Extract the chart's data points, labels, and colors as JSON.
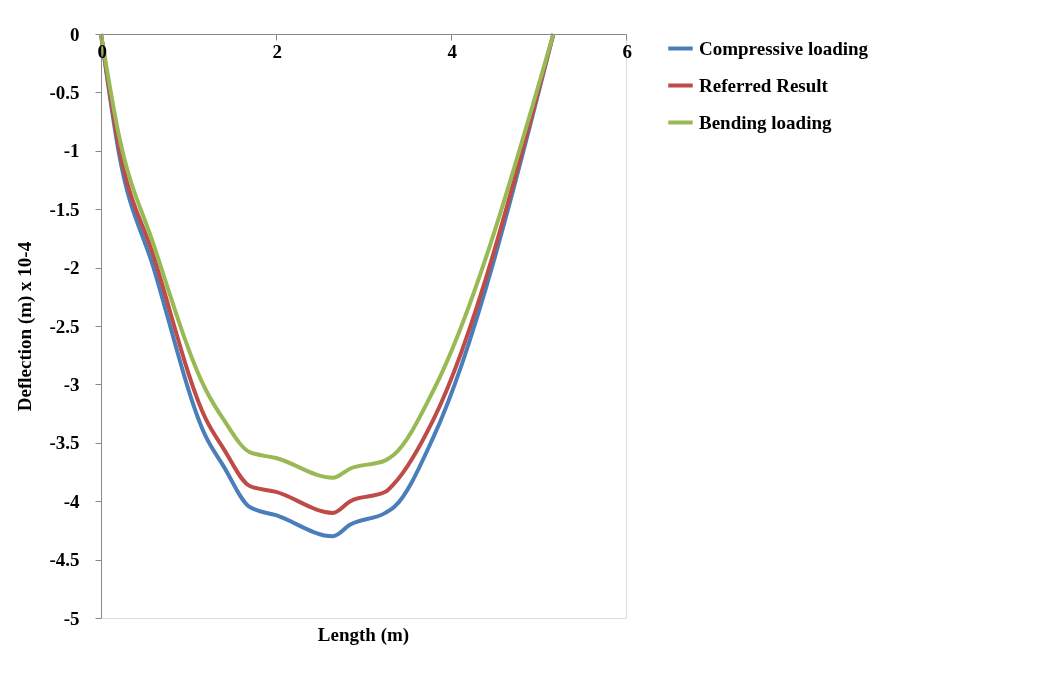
{
  "chart_data": {
    "type": "line",
    "xlabel": "Length (m)",
    "ylabel": "Deflection (m) x 10-4",
    "xlim": [
      0,
      6
    ],
    "xticks": [
      0,
      2,
      4,
      6
    ],
    "ylim": [
      -5,
      0
    ],
    "yticks": [
      0,
      -0.5,
      -1,
      -1.5,
      -2,
      -2.5,
      -3,
      -3.5,
      -4,
      -4.5,
      -5
    ],
    "grid": false,
    "legend": "right",
    "marker": "none",
    "line_style": "solid",
    "series": [
      {
        "name": "Compressive loading",
        "color": "#4a7ebb",
        "x": [
          0,
          0.2,
          0.6,
          1.2,
          1.4,
          1.7,
          2.0,
          2.65,
          2.85,
          3.25,
          3.35,
          3.8,
          5.17
        ],
        "values": [
          0,
          -1.0,
          -2.0,
          -3.45,
          -3.7,
          -4.05,
          -4.12,
          -4.3,
          -4.2,
          -4.1,
          -4.05,
          -3.45,
          0
        ]
      },
      {
        "name": "Referred Result",
        "color": "#be4b48",
        "x": [
          0,
          0.2,
          0.6,
          1.2,
          1.4,
          1.7,
          2.0,
          2.65,
          2.85,
          3.25,
          3.35,
          3.8,
          5.17
        ],
        "values": [
          0,
          -0.95,
          -1.9,
          -3.3,
          -3.55,
          -3.87,
          -3.92,
          -4.1,
          -4.0,
          -3.92,
          -3.85,
          -3.3,
          0
        ]
      },
      {
        "name": "Bending loading",
        "color": "#98b954",
        "x": [
          0,
          0.2,
          0.6,
          1.2,
          1.4,
          1.7,
          2.0,
          2.65,
          2.85,
          3.25,
          3.35,
          3.8,
          5.17
        ],
        "values": [
          0,
          -0.85,
          -1.8,
          -3.05,
          -3.3,
          -3.58,
          -3.63,
          -3.8,
          -3.72,
          -3.65,
          -3.6,
          -3.05,
          0
        ]
      }
    ]
  }
}
